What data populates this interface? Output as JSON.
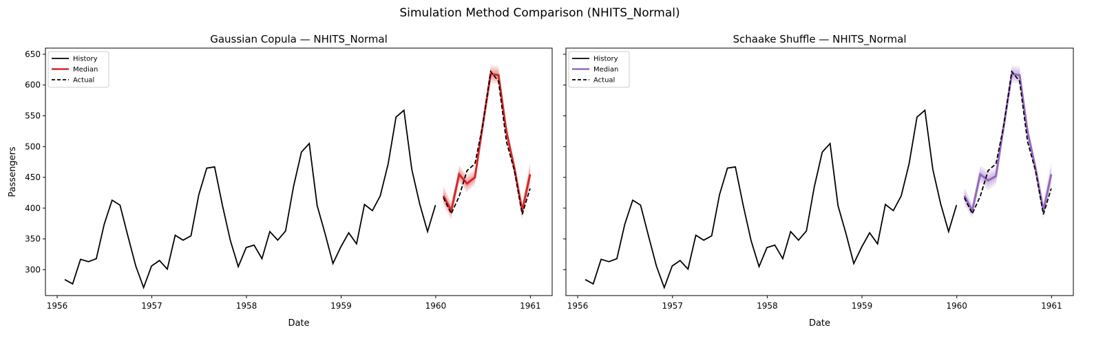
{
  "title": "Simulation Method Comparison (NHITS_Normal)",
  "chart_data": [
    {
      "type": "line",
      "title": "Gaussian Copula — NHITS_Normal",
      "xlabel": "Date",
      "ylabel": "Passengers",
      "xlim": [
        1955.876,
        1961.23
      ],
      "ylim": [
        258,
        660
      ],
      "xticks": [
        1956,
        1957,
        1958,
        1959,
        1960,
        1961
      ],
      "xtick_labels": [
        "1956",
        "1957",
        "1958",
        "1959",
        "1960",
        "1961"
      ],
      "yticks": [
        300,
        350,
        400,
        450,
        500,
        550,
        600,
        650
      ],
      "ytick_labels": [
        "300",
        "350",
        "400",
        "450",
        "500",
        "550",
        "600",
        "650"
      ],
      "legend": {
        "placement": "top-left",
        "entries": [
          "History",
          "Median",
          "Actual"
        ]
      },
      "color": "#d62728",
      "history": [
        284,
        277,
        317,
        313,
        318,
        374,
        413,
        405,
        355,
        306,
        271,
        306,
        315,
        301,
        356,
        348,
        355,
        422,
        465,
        467,
        404,
        347,
        305,
        336,
        340,
        318,
        362,
        348,
        363,
        435,
        491,
        505,
        404,
        359,
        310,
        337,
        360,
        342,
        406,
        396,
        420,
        472,
        548,
        559,
        463,
        407,
        362,
        405
      ],
      "median": [
        420,
        396,
        455,
        440,
        450,
        535,
        618,
        616,
        524,
        465,
        396,
        455
      ],
      "actual": [
        417,
        391,
        419,
        461,
        472,
        535,
        622,
        606,
        508,
        461,
        390,
        432
      ],
      "band_halfwidth": [
        16,
        14,
        14,
        14,
        12,
        12,
        14,
        14,
        12,
        12,
        14,
        20
      ]
    },
    {
      "type": "line",
      "title": "Schaake Shuffle — NHITS_Normal",
      "xlabel": "Date",
      "ylabel": "",
      "xlim": [
        1955.876,
        1961.23
      ],
      "ylim": [
        258,
        660
      ],
      "xticks": [
        1956,
        1957,
        1958,
        1959,
        1960,
        1961
      ],
      "xtick_labels": [
        "1956",
        "1957",
        "1958",
        "1959",
        "1960",
        "1961"
      ],
      "yticks": [
        300,
        350,
        400,
        450,
        500,
        550,
        600,
        650
      ],
      "ytick_labels": [
        "",
        "",
        "",
        "",
        "",
        "",
        "",
        ""
      ],
      "legend": {
        "placement": "top-left",
        "entries": [
          "History",
          "Median",
          "Actual"
        ]
      },
      "color": "#9467bd",
      "history": [
        284,
        277,
        317,
        313,
        318,
        374,
        413,
        405,
        355,
        306,
        271,
        306,
        315,
        301,
        356,
        348,
        355,
        422,
        465,
        467,
        404,
        347,
        305,
        336,
        340,
        318,
        362,
        348,
        363,
        435,
        491,
        505,
        404,
        359,
        310,
        337,
        360,
        342,
        406,
        396,
        420,
        472,
        548,
        559,
        463,
        407,
        362,
        405
      ],
      "median": [
        420,
        396,
        455,
        445,
        452,
        535,
        618,
        616,
        524,
        465,
        396,
        455
      ],
      "actual": [
        417,
        391,
        419,
        461,
        472,
        535,
        622,
        606,
        508,
        461,
        390,
        432
      ],
      "band_halfwidth": [
        14,
        12,
        14,
        16,
        14,
        12,
        14,
        14,
        12,
        12,
        14,
        20
      ]
    }
  ]
}
